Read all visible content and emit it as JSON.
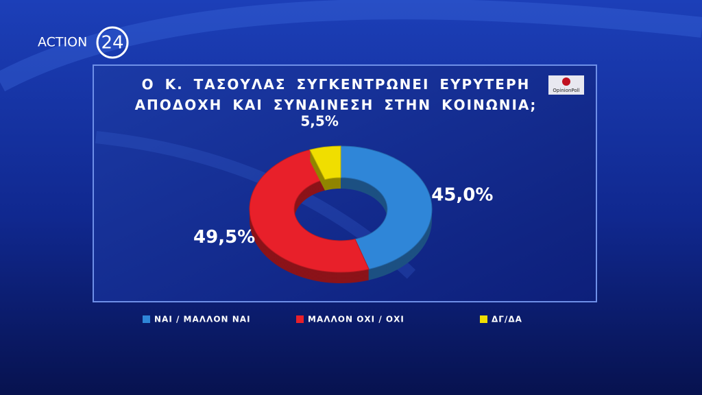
{
  "chart_data": {
    "type": "pie",
    "donut": true,
    "title": "Ο Κ. ΤΑΣΟΥΛΑΣ ΣΥΓΚΕΝΤΡΩΝΕΙ ΕΥΡΥΤΕΡΗ ΑΠΟΔΟΧΗ ΚΑΙ ΣΥΝΑΙΝΕΣΗ ΣΤΗΝ ΚΟΙΝΩΝΙΑ;",
    "categories": [
      "ΝΑΙ / ΜΑΛΛΟΝ ΝΑΙ",
      "ΜΑΛΛΟΝ ΟΧΙ / ΟΧΙ",
      "ΔΓ/ΔΑ"
    ],
    "values": [
      45.0,
      49.5,
      5.5
    ],
    "value_labels": [
      "45,0%",
      "49,5%",
      "5,5%"
    ],
    "colors": [
      "#2f86d8",
      "#e8202a",
      "#f0de00"
    ],
    "legend": "bottom",
    "branding": {
      "channel": "ACTION",
      "channel_number": "24",
      "pollster": "OpinionPoll"
    }
  }
}
